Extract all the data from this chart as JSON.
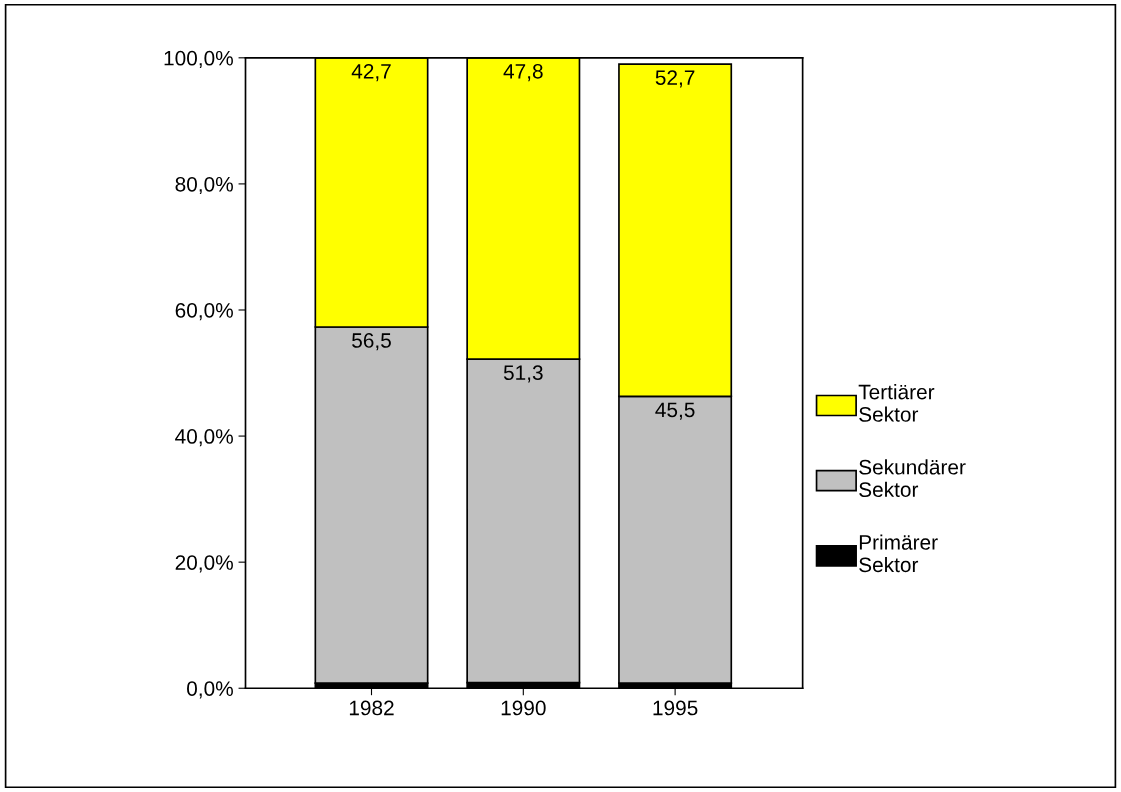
{
  "chart_data": {
    "type": "bar",
    "stacked": true,
    "categories": [
      "1982",
      "1990",
      "1995"
    ],
    "series": [
      {
        "name": "Primärer\nSektor",
        "color": "#000000",
        "values": [
          0.8,
          0.9,
          0.8
        ]
      },
      {
        "name": "Sekundärer\nSektor",
        "color": "#c0c0c0",
        "values": [
          56.5,
          51.3,
          45.5
        ],
        "value_labels": [
          "56,5",
          "51,3",
          "45,5"
        ]
      },
      {
        "name": "Tertiärer\nSektor",
        "color": "#ffff00",
        "values": [
          42.7,
          47.8,
          52.7
        ],
        "value_labels": [
          "42,7",
          "47,8",
          "52,7"
        ]
      }
    ],
    "ylim": [
      0,
      100
    ],
    "yticks": [
      {
        "value": 0,
        "label": "0,0%"
      },
      {
        "value": 20,
        "label": "20,0%"
      },
      {
        "value": 40,
        "label": "40,0%"
      },
      {
        "value": 60,
        "label": "60,0%"
      },
      {
        "value": 80,
        "label": "80,0%"
      },
      {
        "value": 100,
        "label": "100,0%"
      }
    ],
    "grid": false,
    "legend": "right"
  }
}
